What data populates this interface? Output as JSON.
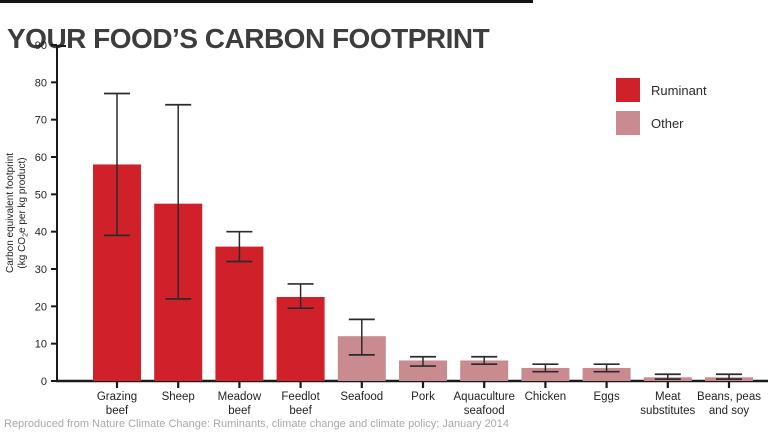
{
  "page": {
    "title": "YOUR FOOD’S CARBON FOOTPRINT",
    "source": "Reproduced from Nature Climate Change: Ruminants, climate change and climate policy; January 2014"
  },
  "legend": {
    "items": [
      {
        "label": "Ruminant",
        "group": "ruminant",
        "color": "#d0212a"
      },
      {
        "label": "Other",
        "group": "other",
        "color": "#c98b90"
      }
    ]
  },
  "colors": {
    "ruminant": "#d0212a",
    "other": "#c98b90",
    "axis": "#1a1a1a",
    "error": "#2b2b2b",
    "tick_label": "#231f20",
    "title": "#3d3d3e",
    "source_text": "#a9a9a9"
  },
  "chart_data": {
    "type": "bar",
    "title": "YOUR FOOD’S CARBON FOOTPRINT",
    "ylabel": "Carbon equivalent footprint (kg CO2e per kg product)",
    "ylabel_line1": "Carbon equivalent footprint",
    "ylabel_line2_parts": [
      "(kg CO",
      "2",
      "e per kg product)"
    ],
    "xlabel": "",
    "ylim": [
      0,
      90
    ],
    "yticks": [
      0,
      10,
      20,
      30,
      40,
      50,
      60,
      70,
      80,
      90
    ],
    "grid": false,
    "legend_position": "upper right",
    "categories": [
      "Grazing beef",
      "Sheep",
      "Meadow beef",
      "Feedlot beef",
      "Seafood",
      "Pork",
      "Aquaculture seafood",
      "Chicken",
      "Eggs",
      "Meat substitutes",
      "Beans, peas and soy"
    ],
    "category_label_lines": [
      [
        "Grazing",
        "beef"
      ],
      [
        "Sheep"
      ],
      [
        "Meadow",
        "beef"
      ],
      [
        "Feedlot",
        "beef"
      ],
      [
        "Seafood"
      ],
      [
        "Pork"
      ],
      [
        "Aquaculture",
        "seafood"
      ],
      [
        "Chicken"
      ],
      [
        "Eggs"
      ],
      [
        "Meat",
        "substitutes"
      ],
      [
        "Beans, peas",
        "and soy"
      ]
    ],
    "values": [
      58,
      47.5,
      36,
      22.5,
      12,
      5.5,
      5.5,
      3.5,
      3.5,
      1,
      1
    ],
    "error_low": [
      39,
      22,
      32,
      19.5,
      7,
      4,
      4.5,
      2.5,
      2.5,
      0.5,
      0.5
    ],
    "error_high": [
      77,
      74,
      40,
      26,
      16.5,
      6.5,
      6.5,
      4.5,
      4.5,
      1.8,
      1.8
    ],
    "groups": [
      "ruminant",
      "ruminant",
      "ruminant",
      "ruminant",
      "other",
      "other",
      "other",
      "other",
      "other",
      "other",
      "other"
    ]
  }
}
